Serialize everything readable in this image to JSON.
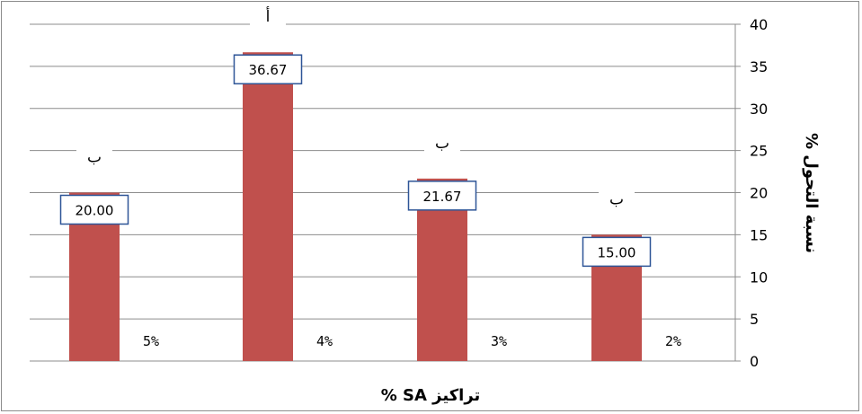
{
  "chart_data": {
    "type": "bar",
    "categories": [
      "5%",
      "4%",
      "3%",
      "2%"
    ],
    "values": [
      20.0,
      36.67,
      21.67,
      15.0
    ],
    "data_labels": [
      "20.00",
      "36.67",
      "21.67",
      "15.00"
    ],
    "letters": [
      "ب",
      "أ",
      "ب",
      "ب"
    ],
    "xlabel": "تراكيز SA %",
    "ylabel": "نسبة التحول %",
    "ylim": [
      0,
      40
    ],
    "yticks": [
      0,
      5,
      10,
      15,
      20,
      25,
      30,
      35,
      40
    ],
    "grid": true,
    "y_axis_side": "right",
    "bar_color": "#c0504d",
    "label_box_color": "#2e5597"
  }
}
